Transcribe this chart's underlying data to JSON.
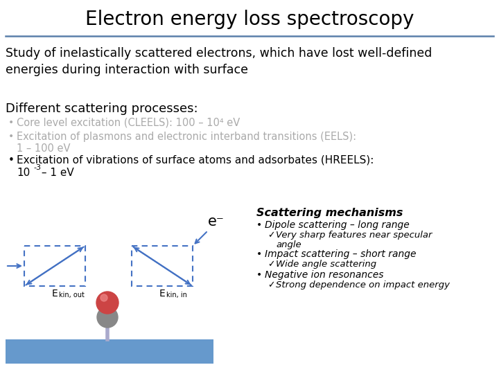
{
  "title": "Electron energy loss spectroscopy",
  "title_fontsize": 20,
  "bg_color": "#ffffff",
  "title_color": "#000000",
  "line_color": "#5b7faa",
  "intro_text": "Study of inelastically scattered electrons, which have lost well-defined\nenergies during interaction with surface",
  "intro_color": "#000000",
  "intro_fontsize": 12.5,
  "section_title": "Different scattering processes:",
  "section_fontsize": 13,
  "bullet_gray_color": "#aaaaaa",
  "bullet_black_color": "#000000",
  "bullet1_gray": "Core level excitation (CLEELS): 100 – 10⁴ eV",
  "bullet2_gray_l1": "Excitation of plasmons and electronic interband transitions (EELS):",
  "bullet2_gray_l2": "1 – 100 eV",
  "bullet3_black_l1": "Excitation of vibrations of surface atoms and adsorbates (HREELS):",
  "bullet3_black_l2a": "10",
  "bullet3_black_l2b": "-3",
  "bullet3_black_l2c": " – 1 eV",
  "scattering_title": "Scattering mechanisms",
  "sc_b1": "Dipole scattering – long range",
  "sc_c1a": "Very sharp features near specular",
  "sc_c1b": "angle",
  "sc_b2": "Impact scattering – short range",
  "sc_c2": "Wide angle scattering",
  "sc_b3": "Negative ion resonances",
  "sc_c3": "Strong dependence on impact energy",
  "diagram_box_color": "#4472c4",
  "surface_color": "#6699cc",
  "atom_bottom_color": "#888888",
  "atom_top_color": "#cc4444",
  "atom_highlight_color": "#ee8888"
}
